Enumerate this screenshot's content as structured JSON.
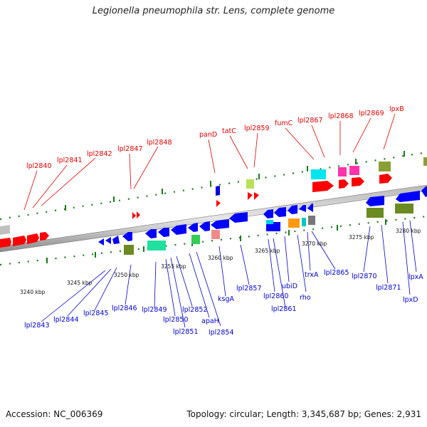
{
  "title": "Legionella pneumophila str. Lens, complete genome",
  "footer": {
    "accession": "Accession: NC_006369",
    "topology": "Topology: circular; Length: 3,345,687 bp; Genes: 2,931"
  },
  "colors": {
    "forward": "#ff0000",
    "reverse": "#0000ff",
    "top_label": "#e00000",
    "bottom_label": "#0000cc"
  },
  "kbp_ticks": [
    "3240 kbp",
    "3245 kbp",
    "3250 kbp",
    "3255 kbp",
    "3260 kbp",
    "3265 kbp",
    "3270 kbp",
    "3275 kbp",
    "3280 kbp"
  ],
  "top_labels": [
    "lpl2840",
    "lpl2841",
    "lpl2842",
    "lpl2847",
    "lpl2848",
    "panD",
    "tatC",
    "lpl2859",
    "fumC",
    "lpl2867",
    "lpl2868",
    "lpl2869",
    "lpxB"
  ],
  "bottom_labels": [
    "lpl2843",
    "lpl2844",
    "lpl2845",
    "lpl2846",
    "lpl2849",
    "lpl2850",
    "lpl2851",
    "lpl2852",
    "apaH",
    "lpl2854",
    "ksgA",
    "lpl2857",
    "lpl2860",
    "lpl2861",
    "ubiD",
    "rho",
    "trxA",
    "lpl2865",
    "lpl2870",
    "lpl2871",
    "lpxD",
    "lpxA"
  ]
}
